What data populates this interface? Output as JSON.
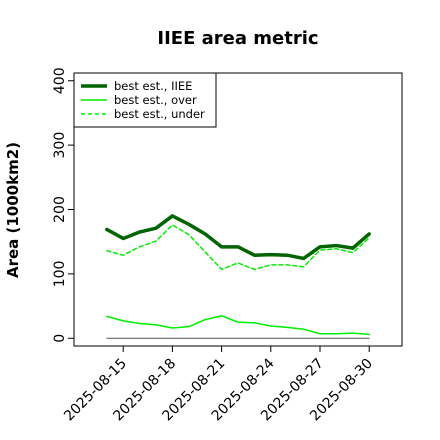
{
  "chart_data": {
    "type": "line",
    "title": "IIEE area metric",
    "xlabel": "",
    "ylabel": "Area (1000km2)",
    "x": [
      "2025-08-14",
      "2025-08-15",
      "2025-08-16",
      "2025-08-17",
      "2025-08-18",
      "2025-08-19",
      "2025-08-20",
      "2025-08-21",
      "2025-08-22",
      "2025-08-23",
      "2025-08-24",
      "2025-08-25",
      "2025-08-26",
      "2025-08-27",
      "2025-08-28",
      "2025-08-29",
      "2025-08-30"
    ],
    "xticks": [
      "2025-08-15",
      "2025-08-18",
      "2025-08-21",
      "2025-08-24",
      "2025-08-27",
      "2025-08-30"
    ],
    "xlim": [
      "2025-08-12",
      "2025-09-01"
    ],
    "ylim": [
      -12,
      412
    ],
    "yticks": [
      0,
      100,
      200,
      300,
      400
    ],
    "grid": false,
    "legend_position": "top-left",
    "series": [
      {
        "name": "best est., IIEE",
        "color": "#006400",
        "style": "solid-thick",
        "values": [
          169,
          155,
          165,
          171,
          190,
          177,
          162,
          142,
          142,
          129,
          130,
          129,
          124,
          142,
          144,
          140,
          162
        ]
      },
      {
        "name": "best est., over",
        "color": "#00ee00",
        "style": "solid",
        "values": [
          34,
          27,
          23,
          21,
          16,
          18,
          29,
          35,
          25,
          24,
          19,
          17,
          14,
          7,
          7,
          8,
          6
        ]
      },
      {
        "name": "best est., under",
        "color": "#00ee00",
        "style": "dashed",
        "values": [
          136,
          129,
          142,
          151,
          176,
          161,
          134,
          107,
          117,
          107,
          114,
          114,
          111,
          137,
          139,
          133,
          156
        ]
      },
      {
        "name": "",
        "color": "#555555",
        "style": "solid-thin",
        "values": [
          0,
          0,
          0,
          0,
          0,
          0,
          0,
          0,
          0,
          0,
          0,
          0,
          0,
          0,
          0,
          0,
          0
        ]
      }
    ]
  }
}
